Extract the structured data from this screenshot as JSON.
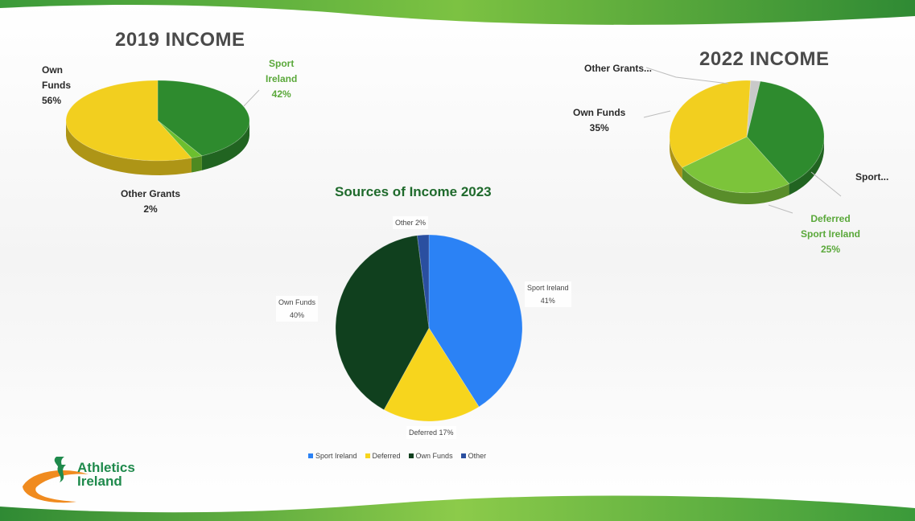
{
  "chart_data": [
    {
      "type": "pie",
      "title": "2019 INCOME",
      "categories": [
        "Sport Ireland",
        "Other Grants",
        "Own Funds"
      ],
      "values": [
        42,
        2,
        56
      ],
      "labels": [
        {
          "name": "Sport Ireland",
          "value": "42%"
        },
        {
          "name": "Other Grants",
          "value": "2%"
        },
        {
          "name": "Own Funds",
          "value": "56%"
        }
      ],
      "colors": [
        "#2e8b2e",
        "#6cbf2e",
        "#f2cf1f"
      ]
    },
    {
      "type": "pie",
      "title": "2022 INCOME",
      "categories": [
        "Sport...",
        "Deferred Sport Ireland",
        "Own Funds",
        "Other Grants..."
      ],
      "values": [
        38,
        25,
        35,
        2
      ],
      "labels": [
        {
          "name": "Sport...",
          "value": ""
        },
        {
          "name": "Deferred Sport Ireland",
          "value": "25%"
        },
        {
          "name": "Own Funds",
          "value": "35%"
        },
        {
          "name": "Other Grants...",
          "value": ""
        }
      ],
      "colors": [
        "#2e8b2e",
        "#7cc43a",
        "#f2cf1f",
        "#c9c9c9"
      ]
    },
    {
      "type": "pie",
      "title": "Sources of Income 2023",
      "categories": [
        "Sport Ireland",
        "Deferred",
        "Own Funds",
        "Other"
      ],
      "values": [
        41,
        17,
        40,
        2
      ],
      "labels": [
        {
          "name": "Sport Ireland",
          "value": "41%"
        },
        {
          "name": "Deferred",
          "value": "17%"
        },
        {
          "name": "Own Funds",
          "value": "40%"
        },
        {
          "name": "Other",
          "value": "2%"
        }
      ],
      "colors": [
        "#2b82f5",
        "#f7d51d",
        "#10401e",
        "#2a4fa0"
      ],
      "legend": "bottom"
    }
  ],
  "labels2019": {
    "own_funds_line1": "Own",
    "own_funds_line2": "Funds",
    "own_funds_pct": "56%",
    "sport_line1": "Sport",
    "sport_line2": "Ireland",
    "sport_pct": "42%",
    "other_line1": "Other Grants",
    "other_pct": "2%"
  },
  "labels2022": {
    "other_grants": "Other Grants...",
    "own_funds": "Own Funds",
    "own_funds_pct": "35%",
    "sport": "Sport...",
    "deferred_line1": "Deferred",
    "deferred_line2": "Sport Ireland",
    "deferred_pct": "25%"
  },
  "labels2023": {
    "other": "Other 2%",
    "sport_line1": "Sport Ireland",
    "sport_line2": "41%",
    "own_line1": "Own Funds",
    "own_line2": "40%",
    "deferred": "Deferred 17%"
  },
  "legend2023": [
    {
      "label": "Sport Ireland",
      "color": "#2b82f5"
    },
    {
      "label": "Deferred",
      "color": "#f7d51d"
    },
    {
      "label": "Own Funds",
      "color": "#10401e"
    },
    {
      "label": "Other",
      "color": "#2a4fa0"
    }
  ],
  "logo": {
    "line1": "Athletics",
    "line2": "Ireland"
  }
}
